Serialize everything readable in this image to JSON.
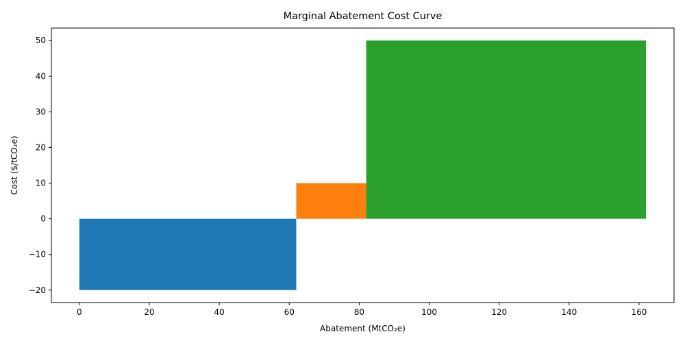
{
  "chart_data": {
    "type": "bar",
    "title": "Marginal Abatement Cost Curve",
    "xlabel": "Abatement (MtCO₂e)",
    "ylabel": "Cost ($/tCO₂e)",
    "xlim": [
      -8,
      170
    ],
    "ylim": [
      -23.5,
      53.5
    ],
    "xticks": [
      0,
      20,
      40,
      60,
      80,
      100,
      120,
      140,
      160
    ],
    "yticks": [
      -20,
      -10,
      0,
      10,
      20,
      30,
      40,
      50
    ],
    "grid": false,
    "legend": "none",
    "segments": [
      {
        "x_start": 0,
        "width": 62,
        "cost": -20,
        "color": "#1f77b4"
      },
      {
        "x_start": 62,
        "width": 20,
        "cost": 10,
        "color": "#ff7f0e"
      },
      {
        "x_start": 82,
        "width": 80,
        "cost": 50,
        "color": "#2ca02c"
      }
    ]
  }
}
